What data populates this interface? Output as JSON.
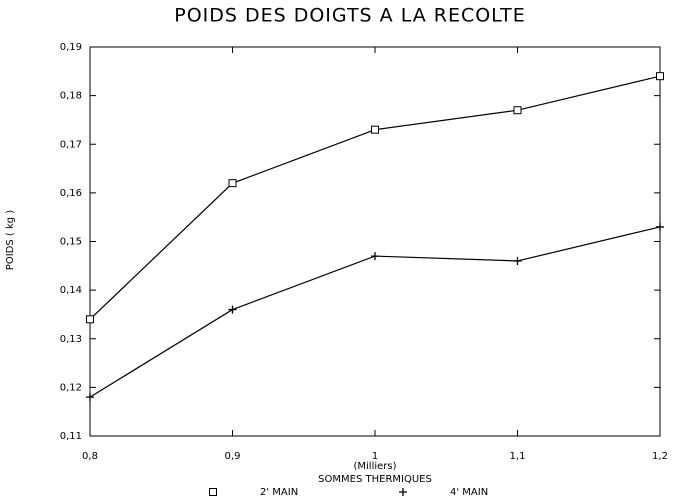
{
  "chart_data": {
    "type": "line",
    "title": "POIDS DES DOIGTS A LA RECOLTE",
    "x_label": "SOMMES THERMIQUES",
    "x_unit": "(Milliers)",
    "y_label": "POIDS ( kg )",
    "x": [
      0.8,
      0.9,
      1,
      1.1,
      1.2
    ],
    "series": [
      {
        "name": "2' MAIN",
        "color": "#000000",
        "marker": "square",
        "values": [
          0.134,
          0.162,
          0.173,
          0.177,
          0.184
        ]
      },
      {
        "name": "4' MAIN",
        "color": "#000000",
        "marker": "plus",
        "values": [
          0.118,
          0.136,
          0.147,
          0.146,
          0.153
        ]
      }
    ],
    "xlim": [
      0.8,
      1.2
    ],
    "xticks": [
      {
        "value": 0.8,
        "label": "0,8"
      },
      {
        "value": 0.9,
        "label": "0,9"
      },
      1,
      {
        "value": 1.1,
        "label": "1,1"
      },
      {
        "value": 1.2,
        "label": "1,2"
      }
    ],
    "ylim": [
      0.11,
      0.19
    ],
    "yticks": [
      {
        "value": 0.11,
        "label": "0,11"
      },
      {
        "value": 0.12,
        "label": "0,12"
      },
      {
        "value": 0.13,
        "label": "0,13"
      },
      {
        "value": 0.14,
        "label": "0,14"
      },
      {
        "value": 0.15,
        "label": "0,15"
      },
      {
        "value": 0.16,
        "label": "0,16"
      },
      {
        "value": 0.17,
        "label": "0,17"
      },
      {
        "value": 0.18,
        "label": "0,18"
      },
      {
        "value": 0.19,
        "label": "0,19"
      }
    ],
    "grid": false,
    "legend": "bottom"
  }
}
